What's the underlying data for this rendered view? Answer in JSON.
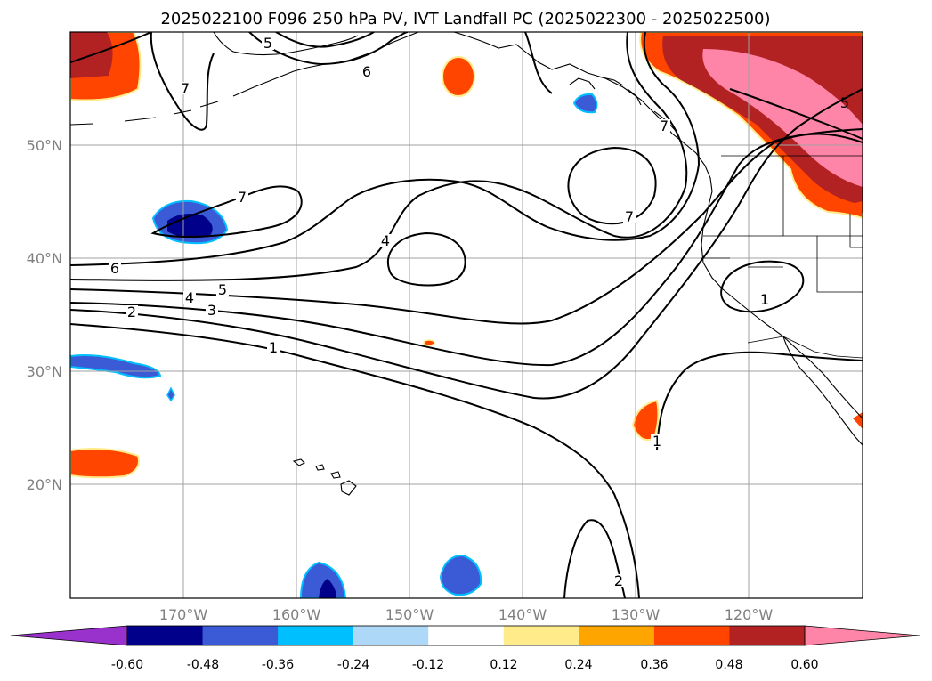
{
  "title": "2025022100 F096 250 hPa PV, IVT Landfall PC (2025022300 - 2025022500)",
  "lon_ticks": [
    "170°W",
    "160°W",
    "150°W",
    "140°W",
    "130°W",
    "120°W"
  ],
  "lat_ticks": [
    "50°N",
    "40°N",
    "30°N",
    "20°N"
  ],
  "colorbar": {
    "levels": [
      "-0.60",
      "-0.48",
      "-0.36",
      "-0.24",
      "-0.12",
      "0.12",
      "0.24",
      "0.36",
      "0.48",
      "0.60"
    ],
    "colors": [
      "#9932cc",
      "#00008b",
      "#3b5bd6",
      "#00bfff",
      "#add8f8",
      "#ffffff",
      "#ffeb8a",
      "#ffa500",
      "#ff4500",
      "#b22222",
      "#ff85a8"
    ],
    "extend": "both"
  },
  "contour_labels": [
    "7",
    "5",
    "6",
    "7",
    "7",
    "6",
    "5",
    "4",
    "3",
    "2",
    "1",
    "4",
    "7",
    "1",
    "5",
    "1",
    "2"
  ]
}
